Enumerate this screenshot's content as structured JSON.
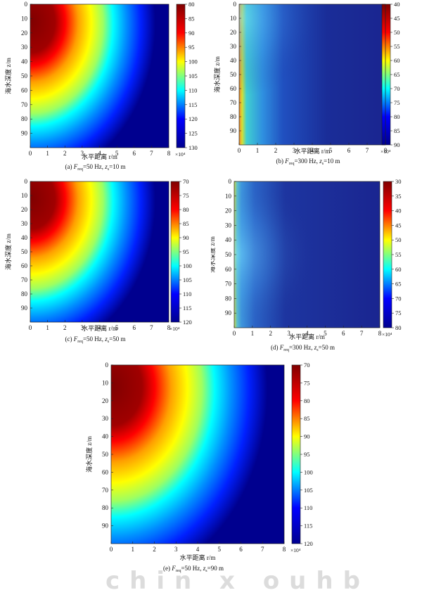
{
  "chart_data": [
    {
      "type": "heatmap",
      "panel": "a",
      "caption_prefix": "(a) ",
      "caption_mid": "=50 Hz,  ",
      "caption_suffix": "=10 m",
      "xlabel": "水平距离 r/m",
      "ylabel": "海水深度 z/m",
      "xticks": [
        "0",
        "1",
        "2",
        "3",
        "4",
        "5",
        "6",
        "7",
        "8"
      ],
      "yticks": [
        "0",
        "10",
        "20",
        "30",
        "40",
        "50",
        "60",
        "70",
        "80",
        "90"
      ],
      "x_range": [
        0,
        8
      ],
      "x_scale_label": "×10⁴",
      "y_range": [
        0,
        100
      ],
      "colorbar": {
        "range": [
          80,
          130
        ],
        "ticks": [
          "80",
          "85",
          "90",
          "95",
          "100",
          "105",
          "110",
          "115",
          "120",
          "125",
          "130"
        ]
      },
      "freq_hz": 50,
      "source_depth_m": 10
    },
    {
      "type": "heatmap",
      "panel": "b",
      "caption_prefix": "(b) ",
      "caption_mid": "=300 Hz,  ",
      "caption_suffix": "=10 m",
      "xlabel": "水平距离 r/m",
      "ylabel": "海水深度 z/m",
      "xticks": [
        "0",
        "1",
        "2",
        "3",
        "4",
        "5",
        "6",
        "7",
        "8"
      ],
      "yticks": [
        "0",
        "10",
        "20",
        "30",
        "40",
        "50",
        "60",
        "70",
        "80",
        "90"
      ],
      "x_range": [
        0,
        8
      ],
      "x_scale_label": "×10⁴",
      "y_range": [
        0,
        100
      ],
      "colorbar": {
        "range": [
          40,
          90
        ],
        "ticks": [
          "40",
          "45",
          "50",
          "55",
          "60",
          "65",
          "70",
          "75",
          "80",
          "85",
          "90"
        ]
      },
      "freq_hz": 300,
      "source_depth_m": 10
    },
    {
      "type": "heatmap",
      "panel": "c",
      "caption_prefix": "(c) ",
      "caption_mid": "=50 Hz,  ",
      "caption_suffix": "=50 m",
      "xlabel": "水平距离 r/m",
      "ylabel": "海水深度 z/m",
      "xticks": [
        "0",
        "1",
        "2",
        "3",
        "4",
        "5",
        "6",
        "7",
        "8"
      ],
      "yticks": [
        "0",
        "10",
        "20",
        "30",
        "40",
        "50",
        "60",
        "70",
        "80",
        "90"
      ],
      "x_range": [
        0,
        8
      ],
      "x_scale_label": "×10⁴",
      "y_range": [
        0,
        100
      ],
      "colorbar": {
        "range": [
          70,
          120
        ],
        "ticks": [
          "70",
          "75",
          "80",
          "85",
          "90",
          "95",
          "100",
          "105",
          "110",
          "115",
          "120"
        ]
      },
      "freq_hz": 50,
      "source_depth_m": 50
    },
    {
      "type": "heatmap",
      "panel": "d",
      "caption_prefix": "(d) ",
      "caption_mid": "=300 Hz,  ",
      "caption_suffix": "=50 m",
      "xlabel": "水平距离 r/m",
      "ylabel": "海水深度 z/m",
      "xticks": [
        "0",
        "1",
        "2",
        "3",
        "4",
        "5",
        "6",
        "7",
        "8"
      ],
      "yticks": [
        "0",
        "10",
        "20",
        "30",
        "40",
        "50",
        "60",
        "70",
        "80",
        "90"
      ],
      "x_range": [
        0,
        8
      ],
      "x_scale_label": "×10⁴",
      "y_range": [
        0,
        100
      ],
      "colorbar": {
        "range": [
          30,
          80
        ],
        "ticks": [
          "30",
          "35",
          "40",
          "45",
          "50",
          "55",
          "60",
          "65",
          "70",
          "75",
          "80"
        ]
      },
      "freq_hz": 300,
      "source_depth_m": 50
    },
    {
      "type": "heatmap",
      "panel": "e",
      "caption_prefix": "(e) ",
      "caption_mid": "=50 Hz,  ",
      "caption_suffix": "=90 m",
      "xlabel": "水平距离 r/m",
      "ylabel": "海水深度 z/m",
      "xticks": [
        "0",
        "1",
        "2",
        "3",
        "4",
        "5",
        "6",
        "7",
        "8"
      ],
      "yticks": [
        "0",
        "10",
        "20",
        "30",
        "40",
        "50",
        "60",
        "70",
        "80",
        "90"
      ],
      "x_range": [
        0,
        8
      ],
      "x_scale_label": "×10⁴",
      "y_range": [
        0,
        100
      ],
      "colorbar": {
        "range": [
          70,
          120
        ],
        "ticks": [
          "70",
          "75",
          "80",
          "85",
          "90",
          "95",
          "100",
          "105",
          "110",
          "115",
          "120"
        ]
      },
      "freq_hz": 50,
      "source_depth_m": 90
    }
  ],
  "symbols": {
    "F": "F",
    "F_sub": "req",
    "z": "z",
    "z_sub": "s"
  },
  "colormap": [
    "#00008f",
    "#0000ff",
    "#00ffff",
    "#ffff00",
    "#ff0000",
    "#800000"
  ]
}
